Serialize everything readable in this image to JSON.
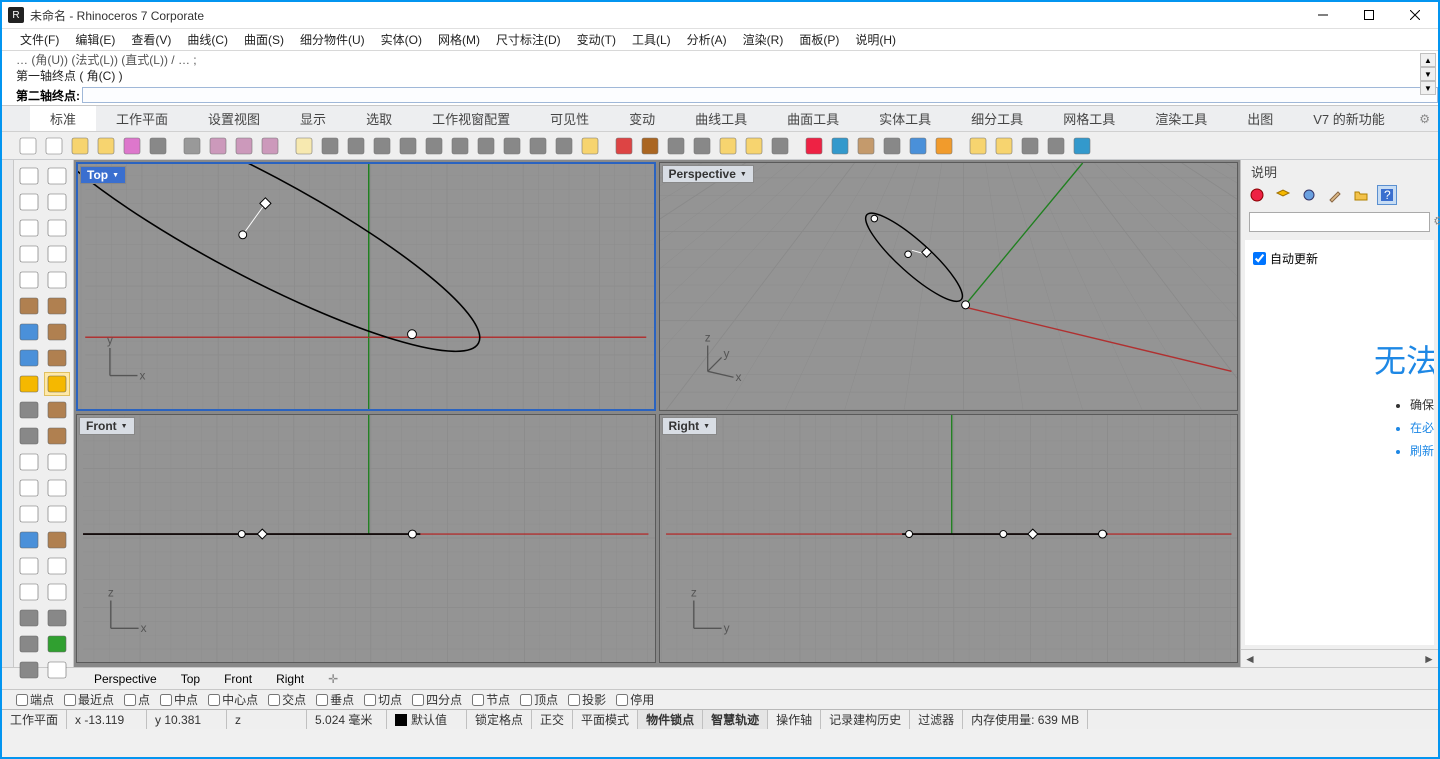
{
  "window": {
    "title": "未命名 - Rhinoceros 7 Corporate"
  },
  "menu": [
    "文件(F)",
    "编辑(E)",
    "查看(V)",
    "曲线(C)",
    "曲面(S)",
    "细分物件(U)",
    "实体(O)",
    "网格(M)",
    "尺寸标注(D)",
    "变动(T)",
    "工具(L)",
    "分析(A)",
    "渲染(R)",
    "面板(P)",
    "说明(H)"
  ],
  "cmd": {
    "history1": "… (角(U)) (法式(L)) (直式(L)) / … ;",
    "line1": "第一轴终点 ( 角(C) )",
    "prompt_label": "第二轴终点:",
    "prompt_value": ""
  },
  "tabs": [
    "标准",
    "工作平面",
    "设置视图",
    "显示",
    "选取",
    "工作视窗配置",
    "可见性",
    "变动",
    "曲线工具",
    "曲面工具",
    "实体工具",
    "细分工具",
    "网格工具",
    "渲染工具",
    "出图",
    "V7 的新功能"
  ],
  "active_tab": 0,
  "viewports": {
    "tl": "Top",
    "tr": "Perspective",
    "bl": "Front",
    "br": "Right",
    "active": "tl"
  },
  "rightpanel": {
    "title": "说明",
    "auto_update": "自动更新",
    "big_text": "无法",
    "bullets": [
      "确保",
      "在必",
      "刷新"
    ]
  },
  "view_tabs": [
    "Perspective",
    "Top",
    "Front",
    "Right"
  ],
  "osnaps": [
    "端点",
    "最近点",
    "点",
    "中点",
    "中心点",
    "交点",
    "垂点",
    "切点",
    "四分点",
    "节点",
    "顶点",
    "投影",
    "停用"
  ],
  "status": {
    "cplane": "工作平面",
    "x": "x -13.119",
    "y": "y 10.381",
    "z": "z",
    "dist": "5.024 毫米",
    "layer": "默认值",
    "toggles": [
      "锁定格点",
      "正交",
      "平面模式",
      "物件锁点",
      "智慧轨迹",
      "操作轴",
      "记录建构历史",
      "过滤器"
    ],
    "bold_idx": [
      3,
      4
    ],
    "memory": "内存使用量: 639 MB"
  },
  "colors": {
    "xaxis": "#b03030",
    "yaxis": "#208020",
    "grid_major": "#7a7a7a",
    "grid_minor": "#8c8c8c",
    "curve": "#000000",
    "control": "#ffffff"
  }
}
